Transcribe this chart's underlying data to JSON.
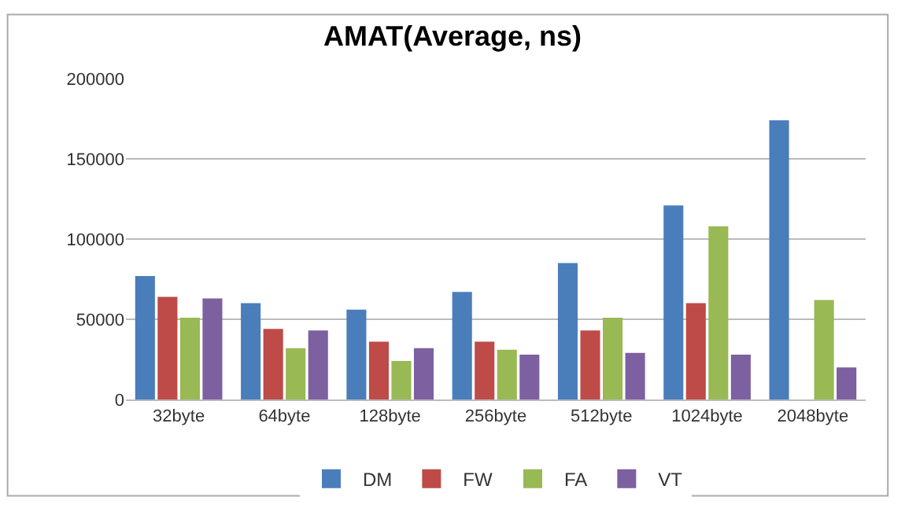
{
  "chart_data": {
    "type": "bar",
    "title": "AMAT(Average, ns)",
    "categories": [
      "32byte",
      "64byte",
      "128byte",
      "256byte",
      "512byte",
      "1024byte",
      "2048byte"
    ],
    "series": [
      {
        "name": "DM",
        "color": "#4a7ebb",
        "values": [
          77000,
          60000,
          56000,
          67000,
          85000,
          121000,
          174000
        ]
      },
      {
        "name": "FW",
        "color": "#be4b48",
        "values": [
          64000,
          44000,
          36000,
          36000,
          43000,
          60000,
          null
        ]
      },
      {
        "name": "FA",
        "color": "#98b954",
        "values": [
          51000,
          32000,
          24000,
          31000,
          51000,
          108000,
          62000
        ]
      },
      {
        "name": "VT",
        "color": "#7d60a0",
        "values": [
          63000,
          43000,
          32000,
          28000,
          29000,
          28000,
          20000
        ]
      }
    ],
    "ylim": [
      0,
      200000
    ],
    "yticks": [
      0,
      50000,
      100000,
      150000,
      200000
    ],
    "grid": "y",
    "legend": "bottom"
  }
}
